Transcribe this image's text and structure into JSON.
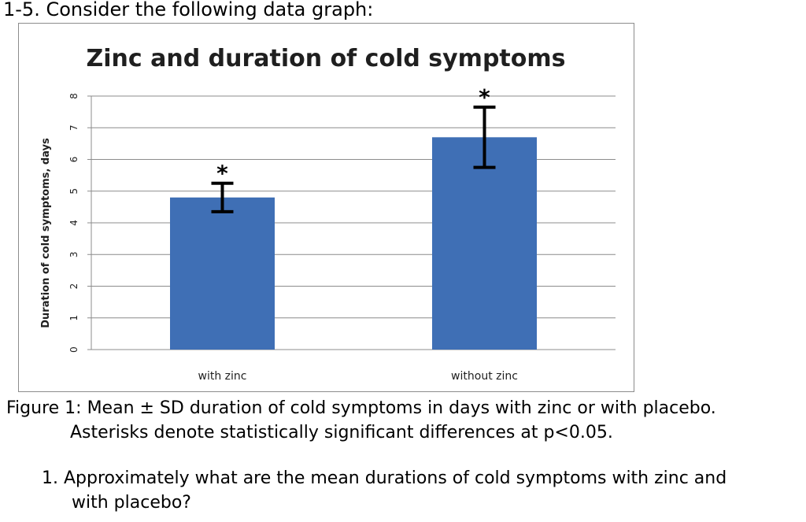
{
  "heading": "1-5. Consider the following data graph:",
  "chart_data": {
    "type": "bar",
    "title": "Zinc and duration of cold symptoms",
    "ylabel": "Duration of cold symptoms, days",
    "xlabel": "",
    "categories": [
      "with zinc",
      "without zinc"
    ],
    "values": [
      4.8,
      6.7
    ],
    "error_sd": [
      0.45,
      0.95
    ],
    "significance_markers": [
      "*",
      "*"
    ],
    "ylim": [
      0,
      8
    ],
    "yticks": [
      0,
      1,
      2,
      3,
      4,
      5,
      6,
      7,
      8
    ],
    "grid": true,
    "legend": false,
    "bar_color": "#3f6fb5",
    "error_bar_color": "#000000",
    "grid_color": "#8c8c8c"
  },
  "caption": {
    "line1": "Figure 1: Mean ± SD duration of cold symptoms in days with zinc or with placebo.",
    "line2": "Asterisks denote statistically significant differences at p<0.05."
  },
  "question": {
    "number": "1.",
    "line1": "Approximately what are the mean durations of cold symptoms with zinc and",
    "line2": "with placebo?"
  }
}
